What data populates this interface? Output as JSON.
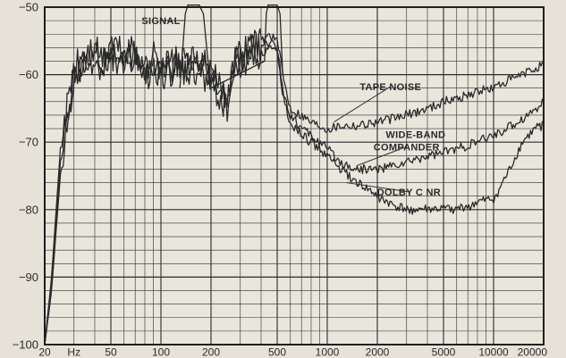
{
  "chart_data": {
    "type": "line",
    "x_scale": "log",
    "xlim": [
      20,
      20000
    ],
    "ylim": [
      -100,
      -50
    ],
    "grid": true,
    "x_tick_labels": [
      {
        "value": 20,
        "label": "20"
      },
      {
        "value": 30,
        "label": "Hz"
      },
      {
        "value": 50,
        "label": "50"
      },
      {
        "value": 100,
        "label": "100"
      },
      {
        "value": 200,
        "label": "200"
      },
      {
        "value": 500,
        "label": "500"
      },
      {
        "value": 1000,
        "label": "1000"
      },
      {
        "value": 2000,
        "label": "2000"
      },
      {
        "value": 5000,
        "label": "5000"
      },
      {
        "value": 10000,
        "label": "10000"
      },
      {
        "value": 20000,
        "label": "20000"
      }
    ],
    "y_tick_labels": [
      {
        "value": -50,
        "label": "−50"
      },
      {
        "value": -60,
        "label": "−60"
      },
      {
        "value": -70,
        "label": "−70"
      },
      {
        "value": -80,
        "label": "−80"
      },
      {
        "value": -90,
        "label": "−90"
      },
      {
        "value": -100,
        "label": "−100"
      }
    ],
    "annotations": [
      {
        "text": "SIGNAL",
        "at": [
          100,
          -52.5
        ],
        "arrow_to": [
          140,
          -52
        ]
      },
      {
        "text": "TAPE NOISE",
        "at": [
          2400,
          -62.3
        ],
        "arrow_to": [
          1100,
          -67
        ]
      },
      {
        "text": "WIDE-BAND",
        "at": [
          3400,
          -69.4
        ],
        "arrow_to": null
      },
      {
        "text": "COMPANDER",
        "at": [
          3000,
          -71.2
        ],
        "arrow_to": [
          1500,
          -73.5
        ]
      },
      {
        "text": "DOLBY C NR",
        "at": [
          3100,
          -77.9
        ],
        "arrow_to": [
          1300,
          -76
        ]
      }
    ],
    "series": [
      {
        "name": "TAPE NOISE",
        "x": [
          20,
          22,
          25,
          30,
          35,
          40,
          45,
          50,
          60,
          70,
          80,
          90,
          100,
          120,
          140,
          160,
          180,
          200,
          220,
          250,
          280,
          300,
          350,
          400,
          450,
          500,
          550,
          600,
          700,
          800,
          900,
          1000,
          1200,
          1500,
          2000,
          2500,
          3000,
          4000,
          5000,
          6000,
          7000,
          8000,
          10000,
          12000,
          15000,
          18000,
          20000
        ],
        "y": [
          -100,
          -90,
          -70,
          -59,
          -57,
          -56,
          -58,
          -55,
          -57,
          -56,
          -59,
          -57,
          -58,
          -58,
          -58,
          -58,
          -58,
          -60,
          -61,
          -63,
          -57,
          -57,
          -55,
          -55,
          -54,
          -55,
          -61,
          -65,
          -66,
          -67,
          -67.5,
          -68,
          -67.5,
          -67.5,
          -67,
          -66.5,
          -66,
          -65,
          -64,
          -63.5,
          -63,
          -62.5,
          -62,
          -61,
          -60,
          -59,
          -58.5
        ]
      },
      {
        "name": "WIDE-BAND COMPANDER",
        "x": [
          20,
          22,
          25,
          30,
          35,
          40,
          45,
          50,
          60,
          70,
          80,
          90,
          100,
          120,
          140,
          160,
          180,
          200,
          220,
          250,
          280,
          300,
          350,
          400,
          450,
          500,
          550,
          600,
          700,
          800,
          900,
          1000,
          1200,
          1500,
          2000,
          2500,
          3000,
          4000,
          5000,
          6000,
          7000,
          8000,
          10000,
          12000,
          15000,
          18000,
          20000
        ],
        "y": [
          -100,
          -91,
          -72,
          -60,
          -58,
          -57,
          -59,
          -56,
          -58,
          -57,
          -60,
          -58,
          -59,
          -59,
          -59,
          -59,
          -59,
          -61,
          -62,
          -64,
          -58,
          -58,
          -56,
          -56,
          -55,
          -56,
          -63,
          -66,
          -68,
          -69,
          -70,
          -71,
          -73,
          -74,
          -74,
          -73.5,
          -73,
          -72,
          -71.5,
          -71,
          -70.5,
          -70,
          -69,
          -68,
          -66.5,
          -65,
          -64
        ]
      },
      {
        "name": "DOLBY C NR",
        "x": [
          20,
          22,
          25,
          30,
          35,
          40,
          45,
          50,
          60,
          70,
          80,
          90,
          100,
          120,
          140,
          160,
          180,
          200,
          220,
          250,
          280,
          300,
          350,
          400,
          450,
          500,
          550,
          600,
          700,
          800,
          900,
          1000,
          1200,
          1500,
          2000,
          2500,
          3000,
          4000,
          5000,
          6000,
          7000,
          8000,
          10000,
          12000,
          15000,
          18000,
          20000
        ],
        "y": [
          -100,
          -92,
          -74,
          -61,
          -59,
          -58,
          -60,
          -57,
          -59,
          -58,
          -61,
          -59,
          -60,
          -60,
          -60,
          -60,
          -60,
          -62,
          -63,
          -65,
          -59,
          -59,
          -57,
          -57,
          -56,
          -57,
          -64,
          -67,
          -69,
          -70,
          -71,
          -72,
          -74,
          -76,
          -78,
          -79.5,
          -80,
          -80,
          -80,
          -80,
          -79.5,
          -79,
          -78.5,
          -75,
          -70,
          -68,
          -67.5
        ]
      },
      {
        "name": "SIGNAL",
        "x": [
          130,
          140,
          145,
          150,
          160,
          170,
          180,
          190,
          200,
          420,
          430,
          440,
          450,
          500,
          520,
          540
        ],
        "y": [
          -62,
          -51,
          -49.7,
          -49.7,
          -49.7,
          -49.7,
          -51,
          -57,
          -62,
          -58,
          -51,
          -49.7,
          -49.7,
          -49.7,
          -51,
          -60
        ]
      }
    ]
  }
}
